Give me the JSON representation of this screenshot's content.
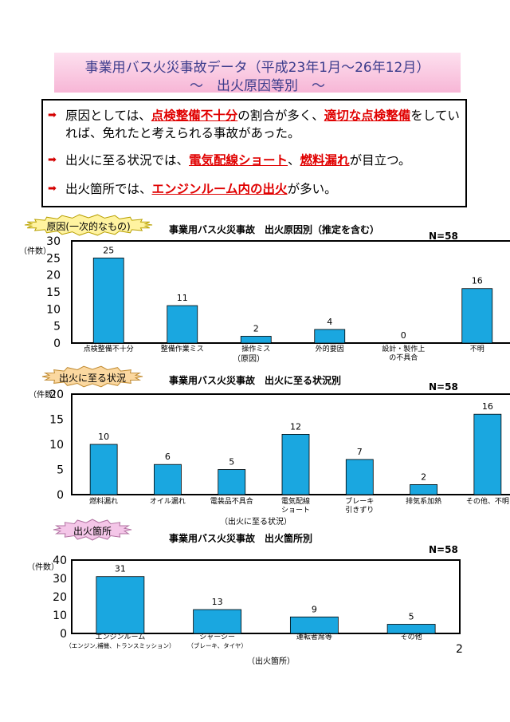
{
  "title": {
    "line1": "事業用バス火災事故データ（平成23年1月〜26年12月）",
    "line2": "〜　出火原因等別　〜"
  },
  "summary": [
    {
      "parts": [
        {
          "text": "原因としては、",
          "hl": false
        },
        {
          "text": "点検整備不十分",
          "hl": true
        },
        {
          "text": "の割合が多く、",
          "hl": false
        },
        {
          "text": "適切な点検整備",
          "hl": true
        },
        {
          "text": "をしていれば、免れたと考えられる事故があった。",
          "hl": false
        }
      ]
    },
    {
      "parts": [
        {
          "text": "出火に至る状況では、",
          "hl": false
        },
        {
          "text": "電気配線ショート",
          "hl": true
        },
        {
          "text": "、",
          "hl": false
        },
        {
          "text": "燃料漏れ",
          "hl": true
        },
        {
          "text": "が目立つ。",
          "hl": false
        }
      ]
    },
    {
      "parts": [
        {
          "text": "出火箇所では、",
          "hl": false
        },
        {
          "text": "エンジンルーム内の出火",
          "hl": true
        },
        {
          "text": "が多い。",
          "hl": false
        }
      ]
    }
  ],
  "badges": {
    "cause": "原因(一次的なもの)",
    "situation": "出火に至る状況",
    "location": "出火箇所"
  },
  "colors": {
    "bar": "#1aa7e0",
    "title": "#3c3c8c",
    "highlight": "#e00000",
    "arrow": "#d40000"
  },
  "chart_data": [
    {
      "type": "bar",
      "title": "事業用バス火災事故　出火原因別（推定を含む）",
      "n_label": "N=58",
      "ylabel": "（件数）",
      "xlabel": "（原因）",
      "ylim": [
        0,
        30
      ],
      "yticks": [
        0,
        5,
        10,
        15,
        20,
        25,
        30
      ],
      "categories": [
        [
          "点検整備不十分"
        ],
        [
          "整備作業ミス"
        ],
        [
          "操作ミス"
        ],
        [
          "外的要因"
        ],
        [
          "設計・製作上",
          "の不具合"
        ],
        [
          "不明"
        ]
      ],
      "values": [
        25,
        11,
        2,
        4,
        0,
        16
      ]
    },
    {
      "type": "bar",
      "title": "事業用バス火災事故　出火に至る状況別",
      "n_label": "N=58",
      "ylabel": "（件数）",
      "xlabel": "（出火に至る状況）",
      "ylim": [
        0,
        20
      ],
      "yticks": [
        0,
        5,
        10,
        15,
        20
      ],
      "categories": [
        [
          "燃料漏れ"
        ],
        [
          "オイル漏れ"
        ],
        [
          "電装品不具合"
        ],
        [
          "電気配線",
          "ショート"
        ],
        [
          "ブレーキ",
          "引きずり"
        ],
        [
          "排気系加熱"
        ],
        [
          "その他、不明"
        ]
      ],
      "values": [
        10,
        6,
        5,
        12,
        7,
        2,
        16
      ]
    },
    {
      "type": "bar",
      "title": "事業用バス火災事故　出火箇所別",
      "n_label": "N=58",
      "ylabel": "（件数）",
      "xlabel": "（出火箇所）",
      "ylim": [
        0,
        40
      ],
      "yticks": [
        0,
        10,
        20,
        30,
        40
      ],
      "categories": [
        [
          "エンジンルーム",
          "（エンジン,補機、トランスミッション）"
        ],
        [
          "シャーシー",
          "（ブレーキ、タイヤ）"
        ],
        [
          "運転者席等"
        ],
        [
          "その他"
        ]
      ],
      "values": [
        31,
        13,
        9,
        5
      ]
    }
  ],
  "page_number": "2"
}
